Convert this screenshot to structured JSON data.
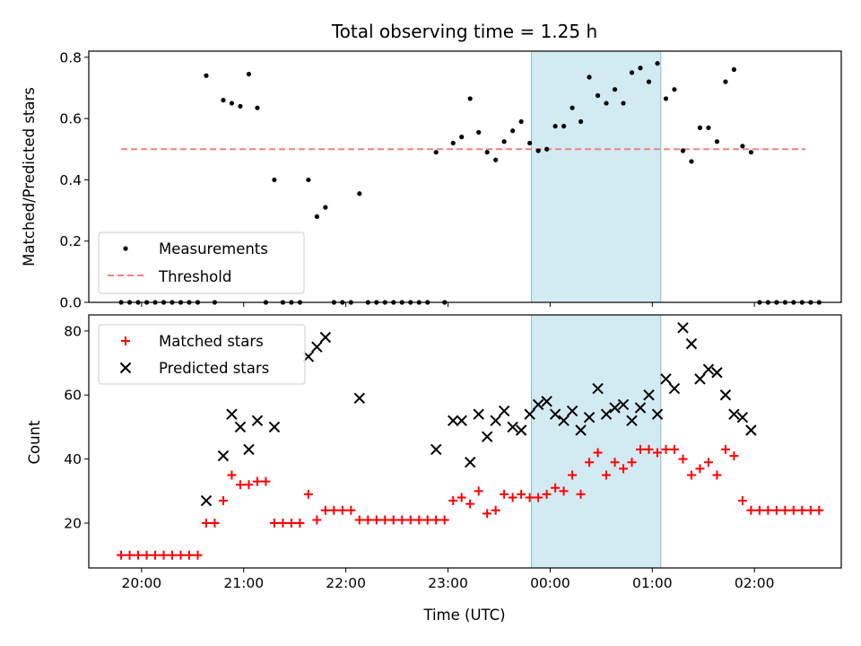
{
  "title": "Total observing time = 1.25 h",
  "xlabel": "Time (UTC)",
  "time_ticks": [
    "20:00",
    "21:00",
    "22:00",
    "23:00",
    "00:00",
    "01:00",
    "02:00"
  ],
  "colors": {
    "measurement": "#000000",
    "threshold": "#f08080",
    "matched": "#ff0000",
    "predicted": "#000000",
    "span": "#add8e6"
  },
  "chart_data": [
    {
      "type": "scatter",
      "ylabel": "Matched/Predicted stars",
      "xlim": [
        "19:29",
        "02:51"
      ],
      "ylim": [
        0,
        0.82
      ],
      "yticks": [
        "0.0",
        "0.2",
        "0.4",
        "0.6",
        "0.8"
      ],
      "grid": false,
      "legend_position": "lower-left",
      "highlight_span": [
        "23:49",
        "01:05"
      ],
      "threshold": {
        "name": "Threshold",
        "value": 0.5,
        "x_range": [
          "19:48",
          "02:30"
        ]
      },
      "series": [
        {
          "name": "Measurements",
          "points": [
            [
              "19:48",
              0
            ],
            [
              "19:53",
              0
            ],
            [
              "19:58",
              0
            ],
            [
              "20:03",
              0
            ],
            [
              "20:08",
              0
            ],
            [
              "20:13",
              0
            ],
            [
              "20:18",
              0
            ],
            [
              "20:23",
              0
            ],
            [
              "20:28",
              0
            ],
            [
              "20:33",
              0
            ],
            [
              "20:38",
              0.74
            ],
            [
              "20:43",
              0
            ],
            [
              "20:48",
              0.66
            ],
            [
              "20:53",
              0.65
            ],
            [
              "20:58",
              0.64
            ],
            [
              "21:03",
              0.745
            ],
            [
              "21:08",
              0.635
            ],
            [
              "21:13",
              0
            ],
            [
              "21:18",
              0.4
            ],
            [
              "21:23",
              0
            ],
            [
              "21:28",
              0
            ],
            [
              "21:33",
              0
            ],
            [
              "21:38",
              0.4
            ],
            [
              "21:43",
              0.28
            ],
            [
              "21:48",
              0.31
            ],
            [
              "21:53",
              0
            ],
            [
              "21:58",
              0
            ],
            [
              "22:03",
              0
            ],
            [
              "22:08",
              0.355
            ],
            [
              "22:13",
              0
            ],
            [
              "22:18",
              0
            ],
            [
              "22:23",
              0
            ],
            [
              "22:28",
              0
            ],
            [
              "22:33",
              0
            ],
            [
              "22:38",
              0
            ],
            [
              "22:43",
              0
            ],
            [
              "22:48",
              0
            ],
            [
              "22:53",
              0.49
            ],
            [
              "22:58",
              0
            ],
            [
              "23:03",
              0.52
            ],
            [
              "23:08",
              0.54
            ],
            [
              "23:13",
              0.665
            ],
            [
              "23:18",
              0.555
            ],
            [
              "23:23",
              0.49
            ],
            [
              "23:28",
              0.465
            ],
            [
              "23:33",
              0.525
            ],
            [
              "23:38",
              0.56
            ],
            [
              "23:43",
              0.59
            ],
            [
              "23:48",
              0.52
            ],
            [
              "23:53",
              0.495
            ],
            [
              "23:58",
              0.5
            ],
            [
              "00:03",
              0.575
            ],
            [
              "00:08",
              0.575
            ],
            [
              "00:13",
              0.635
            ],
            [
              "00:18",
              0.59
            ],
            [
              "00:23",
              0.735
            ],
            [
              "00:28",
              0.675
            ],
            [
              "00:33",
              0.65
            ],
            [
              "00:38",
              0.695
            ],
            [
              "00:43",
              0.65
            ],
            [
              "00:48",
              0.75
            ],
            [
              "00:53",
              0.765
            ],
            [
              "00:58",
              0.72
            ],
            [
              "01:03",
              0.78
            ],
            [
              "01:08",
              0.665
            ],
            [
              "01:13",
              0.695
            ],
            [
              "01:18",
              0.495
            ],
            [
              "01:23",
              0.46
            ],
            [
              "01:28",
              0.57
            ],
            [
              "01:33",
              0.57
            ],
            [
              "01:38",
              0.525
            ],
            [
              "01:43",
              0.72
            ],
            [
              "01:48",
              0.76
            ],
            [
              "01:53",
              0.51
            ],
            [
              "01:58",
              0.49
            ],
            [
              "02:03",
              0
            ],
            [
              "02:08",
              0
            ],
            [
              "02:13",
              0
            ],
            [
              "02:18",
              0
            ],
            [
              "02:23",
              0
            ],
            [
              "02:28",
              0
            ],
            [
              "02:33",
              0
            ],
            [
              "02:38",
              0
            ]
          ]
        }
      ]
    },
    {
      "type": "scatter",
      "ylabel": "Count",
      "xlim": [
        "19:29",
        "02:51"
      ],
      "ylim": [
        6,
        85
      ],
      "yticks": [
        "20",
        "40",
        "60",
        "80"
      ],
      "grid": false,
      "legend_position": "upper-left",
      "highlight_span": [
        "23:49",
        "01:05"
      ],
      "series": [
        {
          "name": "Matched stars",
          "marker": "plus",
          "points": [
            [
              "19:48",
              10
            ],
            [
              "19:53",
              10
            ],
            [
              "19:58",
              10
            ],
            [
              "20:03",
              10
            ],
            [
              "20:08",
              10
            ],
            [
              "20:13",
              10
            ],
            [
              "20:18",
              10
            ],
            [
              "20:23",
              10
            ],
            [
              "20:28",
              10
            ],
            [
              "20:33",
              10
            ],
            [
              "20:38",
              20
            ],
            [
              "20:43",
              20
            ],
            [
              "20:48",
              27
            ],
            [
              "20:53",
              35
            ],
            [
              "20:58",
              32
            ],
            [
              "21:03",
              32
            ],
            [
              "21:08",
              33
            ],
            [
              "21:13",
              33
            ],
            [
              "21:18",
              20
            ],
            [
              "21:23",
              20
            ],
            [
              "21:28",
              20
            ],
            [
              "21:33",
              20
            ],
            [
              "21:38",
              29
            ],
            [
              "21:43",
              21
            ],
            [
              "21:48",
              24
            ],
            [
              "21:53",
              24
            ],
            [
              "21:58",
              24
            ],
            [
              "22:03",
              24
            ],
            [
              "22:08",
              21
            ],
            [
              "22:13",
              21
            ],
            [
              "22:18",
              21
            ],
            [
              "22:23",
              21
            ],
            [
              "22:28",
              21
            ],
            [
              "22:33",
              21
            ],
            [
              "22:38",
              21
            ],
            [
              "22:43",
              21
            ],
            [
              "22:48",
              21
            ],
            [
              "22:53",
              21
            ],
            [
              "22:58",
              21
            ],
            [
              "23:03",
              27
            ],
            [
              "23:08",
              28
            ],
            [
              "23:13",
              26
            ],
            [
              "23:18",
              30
            ],
            [
              "23:23",
              23
            ],
            [
              "23:28",
              24
            ],
            [
              "23:33",
              29
            ],
            [
              "23:38",
              28
            ],
            [
              "23:43",
              29
            ],
            [
              "23:48",
              28
            ],
            [
              "23:53",
              28
            ],
            [
              "23:58",
              29
            ],
            [
              "00:03",
              31
            ],
            [
              "00:08",
              30
            ],
            [
              "00:13",
              35
            ],
            [
              "00:18",
              29
            ],
            [
              "00:23",
              39
            ],
            [
              "00:28",
              42
            ],
            [
              "00:33",
              35
            ],
            [
              "00:38",
              39
            ],
            [
              "00:43",
              37
            ],
            [
              "00:48",
              39
            ],
            [
              "00:53",
              43
            ],
            [
              "00:58",
              43
            ],
            [
              "01:03",
              42
            ],
            [
              "01:08",
              43
            ],
            [
              "01:13",
              43
            ],
            [
              "01:18",
              40
            ],
            [
              "01:23",
              35
            ],
            [
              "01:28",
              37
            ],
            [
              "01:33",
              39
            ],
            [
              "01:38",
              35
            ],
            [
              "01:43",
              43
            ],
            [
              "01:48",
              41
            ],
            [
              "01:53",
              27
            ],
            [
              "01:58",
              24
            ],
            [
              "02:03",
              24
            ],
            [
              "02:08",
              24
            ],
            [
              "02:13",
              24
            ],
            [
              "02:18",
              24
            ],
            [
              "02:23",
              24
            ],
            [
              "02:28",
              24
            ],
            [
              "02:33",
              24
            ],
            [
              "02:38",
              24
            ]
          ]
        },
        {
          "name": "Predicted stars",
          "marker": "x",
          "points": [
            [
              "20:38",
              27
            ],
            [
              "20:48",
              41
            ],
            [
              "20:53",
              54
            ],
            [
              "20:58",
              50
            ],
            [
              "21:03",
              43
            ],
            [
              "21:08",
              52
            ],
            [
              "21:18",
              50
            ],
            [
              "21:38",
              72
            ],
            [
              "21:43",
              75
            ],
            [
              "21:48",
              78
            ],
            [
              "22:08",
              59
            ],
            [
              "22:53",
              43
            ],
            [
              "23:03",
              52
            ],
            [
              "23:08",
              52
            ],
            [
              "23:13",
              39
            ],
            [
              "23:18",
              54
            ],
            [
              "23:23",
              47
            ],
            [
              "23:28",
              52
            ],
            [
              "23:33",
              55
            ],
            [
              "23:38",
              50
            ],
            [
              "23:43",
              49
            ],
            [
              "23:48",
              54
            ],
            [
              "23:53",
              57
            ],
            [
              "23:58",
              58
            ],
            [
              "00:03",
              54
            ],
            [
              "00:08",
              52
            ],
            [
              "00:13",
              55
            ],
            [
              "00:18",
              49
            ],
            [
              "00:23",
              53
            ],
            [
              "00:28",
              62
            ],
            [
              "00:33",
              54
            ],
            [
              "00:38",
              56
            ],
            [
              "00:43",
              57
            ],
            [
              "00:48",
              52
            ],
            [
              "00:53",
              56
            ],
            [
              "00:58",
              60
            ],
            [
              "01:03",
              54
            ],
            [
              "01:08",
              65
            ],
            [
              "01:13",
              62
            ],
            [
              "01:18",
              81
            ],
            [
              "01:23",
              76
            ],
            [
              "01:28",
              65
            ],
            [
              "01:33",
              68
            ],
            [
              "01:38",
              67
            ],
            [
              "01:43",
              60
            ],
            [
              "01:48",
              54
            ],
            [
              "01:53",
              53
            ],
            [
              "01:58",
              49
            ]
          ]
        }
      ]
    }
  ]
}
